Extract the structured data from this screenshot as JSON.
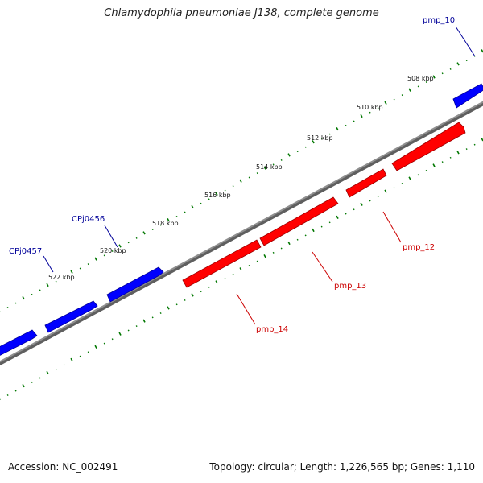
{
  "title": "Chlamydophila pneumoniae J138, complete genome",
  "footer": {
    "accession": "Accession: NC_002491",
    "topology": "Topology: circular; Length: 1,226,565 bp; Genes: 1,110"
  },
  "colors": {
    "forward_gene": "#0000ff",
    "reverse_gene": "#ff0000",
    "backbone": "#7f7f7f",
    "ticks": "#007700",
    "forward_label": "#000099",
    "reverse_label": "#cc0000"
  },
  "scale_labels": [
    "508 kbp",
    "510 kbp",
    "512 kbp",
    "514 kbp",
    "516 kbp",
    "518 kbp",
    "520 kbp",
    "522 kbp"
  ],
  "gene_labels": {
    "pmp_10": "pmp_10",
    "CPj0456": "CPj0456",
    "CPj0457": "CPj0457",
    "pmp_12": "pmp_12",
    "pmp_13": "pmp_13",
    "pmp_14": "pmp_14"
  }
}
